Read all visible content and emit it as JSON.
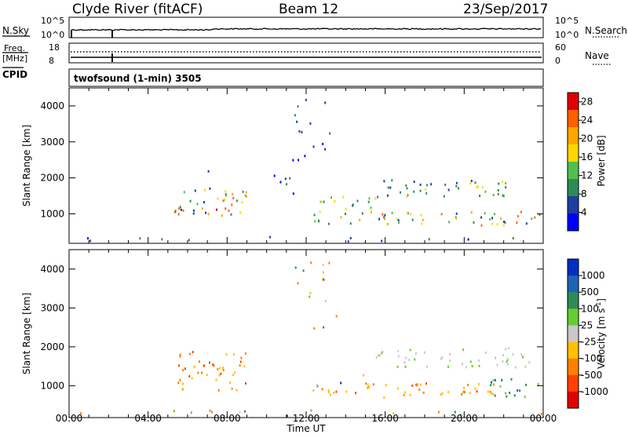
{
  "header": {
    "station": "Clyde River (fitACF)",
    "beam": "Beam 12",
    "date": "23/Sep/2017"
  },
  "strips": {
    "nsky_label": "N.Sky",
    "nsearch_label": "N.Search",
    "nsky_ticks": [
      "10^5",
      "10^0"
    ],
    "nsearch_ticks": [
      "10^5",
      "10^0"
    ],
    "freq_label_top": "Freq.",
    "freq_label_unit": "[MHz]",
    "freq_ticks": [
      "18",
      "8"
    ],
    "nave_label": "Nave",
    "nave_ticks": [
      "60",
      "0"
    ],
    "cpid_label": "CPID",
    "cpid_text": "twofsound (1-min) 3505"
  },
  "chart_data": [
    {
      "type": "heatmap",
      "title": "Power",
      "ylabel": "Slant Range [km]",
      "xlabel": "Time UT",
      "x_ticks": [
        "00:00",
        "04:00",
        "08:00",
        "12:00",
        "16:00",
        "20:00",
        "00:00"
      ],
      "y_ticks": [
        1000,
        2000,
        3000,
        4000
      ],
      "ylim": [
        180,
        4500
      ],
      "xlim_hours": [
        0,
        24
      ],
      "colorbar": {
        "label": "Power [dB]",
        "ticks": [
          4,
          8,
          12,
          16,
          20,
          24,
          28
        ],
        "range": [
          0,
          30
        ],
        "colors": [
          "#0000ff",
          "#1e3ea0",
          "#2e8b57",
          "#4fc04f",
          "#ffd700",
          "#ffa500",
          "#ff6000",
          "#e00000"
        ]
      },
      "scatter_regions": [
        {
          "t": [
            5.3,
            9.0
          ],
          "r": [
            1000,
            1800
          ],
          "level": "high"
        },
        {
          "t": [
            7.4,
            8.4
          ],
          "r": [
            950,
            1300
          ],
          "level": "peak"
        },
        {
          "t": [
            12.3,
            23.8
          ],
          "r": [
            700,
            1100
          ],
          "level": "high"
        },
        {
          "t": [
            12.3,
            15.5
          ],
          "r": [
            1100,
            1500
          ],
          "level": "mid"
        },
        {
          "t": [
            15.5,
            22.5
          ],
          "r": [
            1500,
            2000
          ],
          "level": "mid"
        },
        {
          "t": [
            9.5,
            12.0
          ],
          "r": [
            1500,
            2200
          ],
          "level": "low"
        },
        {
          "t": [
            6.5,
            7.5
          ],
          "r": [
            2200,
            2600
          ],
          "level": "low"
        },
        {
          "t": [
            11.3,
            13.5
          ],
          "r": [
            2500,
            4400
          ],
          "level": "low"
        },
        {
          "t": [
            0.0,
            24.0
          ],
          "r": [
            180,
            400
          ],
          "level": "low"
        }
      ]
    },
    {
      "type": "heatmap",
      "title": "Velocity",
      "ylabel": "Slant Range [km]",
      "xlabel": "Time UT",
      "x_ticks": [
        "00:00",
        "04:00",
        "08:00",
        "12:00",
        "16:00",
        "20:00",
        "00:00"
      ],
      "y_ticks": [
        1000,
        2000,
        3000,
        4000
      ],
      "ylim": [
        180,
        4500
      ],
      "xlim_hours": [
        0,
        24
      ],
      "colorbar": {
        "label": "Velocity [m s-1]",
        "label_parts": [
          "Velocity",
          "[m s",
          "-1",
          "]"
        ],
        "ticks": [
          1000,
          500,
          100,
          25,
          -25,
          -100,
          -500,
          -1000
        ],
        "colors": [
          "#0030c0",
          "#1e64b4",
          "#2e8b57",
          "#66cc33",
          "#c8c8c8",
          "#ffc000",
          "#ff8000",
          "#ff4000",
          "#e00000"
        ]
      },
      "scatter_regions": [
        {
          "t": [
            5.3,
            9.0
          ],
          "r": [
            900,
            1900
          ],
          "level": "neg"
        },
        {
          "t": [
            12.3,
            22.0
          ],
          "r": [
            700,
            1100
          ],
          "level": "neg"
        },
        {
          "t": [
            12.3,
            15.0
          ],
          "r": [
            1000,
            1400
          ],
          "level": "mix"
        },
        {
          "t": [
            15.5,
            23.5
          ],
          "r": [
            1500,
            2000
          ],
          "level": "zero"
        },
        {
          "t": [
            21.0,
            23.8
          ],
          "r": [
            700,
            1200
          ],
          "level": "pos"
        },
        {
          "t": [
            11.3,
            13.5
          ],
          "r": [
            2500,
            4400
          ],
          "level": "mix"
        },
        {
          "t": [
            0.0,
            24.0
          ],
          "r": [
            180,
            400
          ],
          "level": "mix"
        }
      ]
    }
  ]
}
